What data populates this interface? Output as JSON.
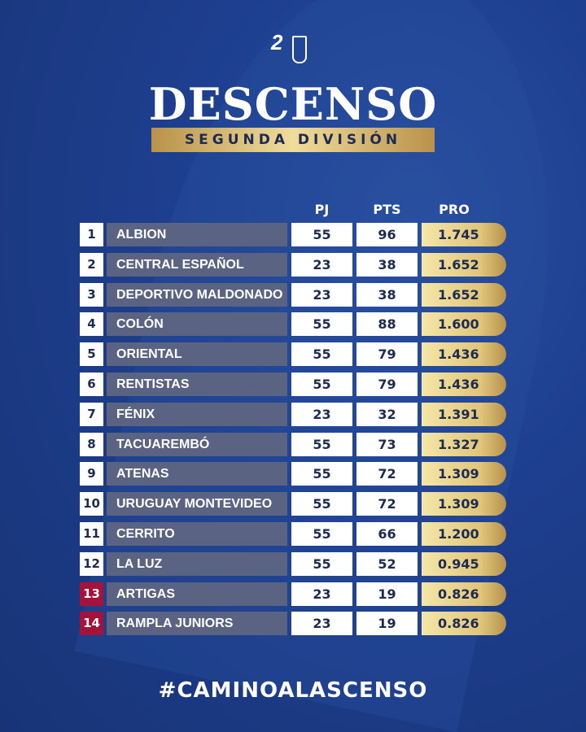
{
  "logo": {
    "number": "2"
  },
  "title": "DESCENSO",
  "subtitle": "SEGUNDA DIVISIÓN",
  "columns": {
    "pj": "PJ",
    "pts": "PTS",
    "pro": "PRO"
  },
  "rows": [
    {
      "rank": "1",
      "team": "ALBION",
      "pj": "55",
      "pts": "96",
      "pro": "1.745"
    },
    {
      "rank": "2",
      "team": "CENTRAL ESPAÑOL",
      "pj": "23",
      "pts": "38",
      "pro": "1.652"
    },
    {
      "rank": "3",
      "team": "DEPORTIVO MALDONADO",
      "pj": "23",
      "pts": "38",
      "pro": "1.652"
    },
    {
      "rank": "4",
      "team": "COLÓN",
      "pj": "55",
      "pts": "88",
      "pro": "1.600"
    },
    {
      "rank": "5",
      "team": "ORIENTAL",
      "pj": "55",
      "pts": "79",
      "pro": "1.436"
    },
    {
      "rank": "6",
      "team": "RENTISTAS",
      "pj": "55",
      "pts": "79",
      "pro": "1.436"
    },
    {
      "rank": "7",
      "team": "FÉNIX",
      "pj": "23",
      "pts": "32",
      "pro": "1.391"
    },
    {
      "rank": "8",
      "team": "TACUAREMBÓ",
      "pj": "55",
      "pts": "73",
      "pro": "1.327"
    },
    {
      "rank": "9",
      "team": "ATENAS",
      "pj": "55",
      "pts": "72",
      "pro": "1.309"
    },
    {
      "rank": "10",
      "team": "URUGUAY MONTEVIDEO",
      "pj": "55",
      "pts": "72",
      "pro": "1.309"
    },
    {
      "rank": "11",
      "team": "CERRITO",
      "pj": "55",
      "pts": "66",
      "pro": "1.200"
    },
    {
      "rank": "12",
      "team": "LA LUZ",
      "pj": "55",
      "pts": "52",
      "pro": "0.945"
    },
    {
      "rank": "13",
      "team": "ARTIGAS",
      "pj": "23",
      "pts": "19",
      "pro": "0.826",
      "relegated": true
    },
    {
      "rank": "14",
      "team": "RAMPLA JUNIORS",
      "pj": "23",
      "pts": "19",
      "pro": "0.826",
      "relegated": true
    }
  ],
  "colors": {
    "relegated": "#a5123a",
    "gold": "#e0c57a",
    "background": "#1e3f8f"
  },
  "hashtag": "#CAMINOALASCENSO"
}
